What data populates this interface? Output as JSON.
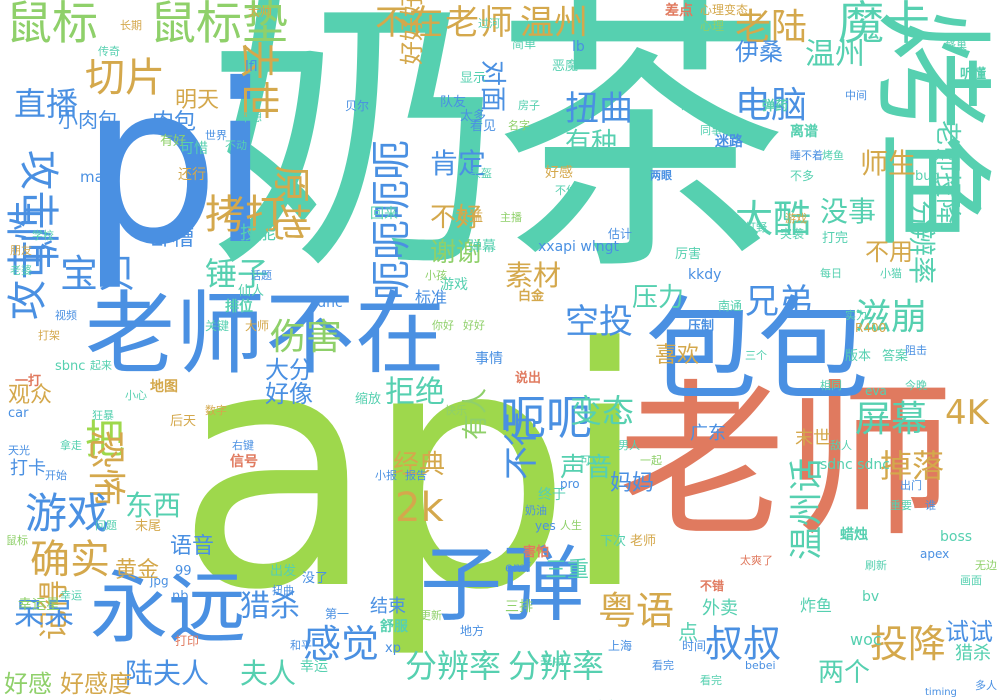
{
  "palette": [
    "#4a90e2",
    "#56d0b0",
    "#9ed84c",
    "#e07a5f",
    "#d4a84c",
    "#8fd06a"
  ],
  "words": [
    {
      "text": "api",
      "color": "#9ed84c"
    },
    {
      "text": "奶茶",
      "color": "#56d0b0"
    },
    {
      "text": "老师",
      "color": "#e07a5f"
    },
    {
      "text": "pi",
      "color": "#4a90e2"
    },
    {
      "text": "包包",
      "color": "#4a90e2"
    },
    {
      "text": "老师不在",
      "color": "#4a90e2"
    },
    {
      "text": "永远",
      "color": "#4a90e2"
    },
    {
      "text": "子弹",
      "color": "#4a90e2"
    },
    {
      "text": "烤鱼",
      "color": "#56d0b0"
    },
    {
      "text": "鼠标",
      "color": "#8fd06a"
    },
    {
      "text": "鼠标垫",
      "color": "#8fd06a"
    },
    {
      "text": "不在",
      "color": "#d4a84c"
    },
    {
      "text": "老师",
      "color": "#d4a84c"
    },
    {
      "text": "温州",
      "color": "#d4a84c"
    },
    {
      "text": "老陆",
      "color": "#d4a84c"
    },
    {
      "text": "魔卡",
      "color": "#56d0b0"
    },
    {
      "text": "直播",
      "color": "#4a90e2"
    },
    {
      "text": "切片",
      "color": "#d4a84c"
    },
    {
      "text": "去世",
      "color": "#d4a84c"
    },
    {
      "text": "扭曲",
      "color": "#4a90e2"
    },
    {
      "text": "电脑",
      "color": "#4a90e2"
    },
    {
      "text": "呃呃呃呃",
      "color": "#4a90e2"
    },
    {
      "text": "拷打",
      "color": "#d4a84c"
    },
    {
      "text": "原地",
      "color": "#d4a84c"
    },
    {
      "text": "太酷",
      "color": "#56d0b0"
    },
    {
      "text": "攻击性",
      "color": "#4a90e2"
    },
    {
      "text": "攻击性",
      "color": "#4a90e2"
    },
    {
      "text": "宝贝",
      "color": "#4a90e2"
    },
    {
      "text": "锤子",
      "color": "#56d0b0"
    },
    {
      "text": "兄弟",
      "color": "#4a90e2"
    },
    {
      "text": "空投",
      "color": "#4a90e2"
    },
    {
      "text": "伤害",
      "color": "#8fd06a"
    },
    {
      "text": "滋崩",
      "color": "#56d0b0"
    },
    {
      "text": "呃呃",
      "color": "#4a90e2"
    },
    {
      "text": "把",
      "color": "#9ed84c"
    },
    {
      "text": "恐怖",
      "color": "#d4a84c"
    },
    {
      "text": "游戏",
      "color": "#4a90e2"
    },
    {
      "text": "确实",
      "color": "#d4a84c"
    },
    {
      "text": "2k",
      "color": "#d4a84c"
    },
    {
      "text": "不行",
      "color": "#4a90e2"
    },
    {
      "text": "粤语",
      "color": "#d4a84c"
    },
    {
      "text": "叔叔",
      "color": "#4a90e2"
    },
    {
      "text": "投降",
      "color": "#d4a84c"
    },
    {
      "text": "感觉",
      "color": "#4a90e2"
    },
    {
      "text": "分辨率",
      "color": "#56d0b0"
    },
    {
      "text": "分辨率",
      "color": "#56d0b0"
    },
    {
      "text": "温州话",
      "color": "#56d0b0"
    },
    {
      "text": "屏幕",
      "color": "#56d0b0"
    },
    {
      "text": "掉落",
      "color": "#d4a84c"
    },
    {
      "text": "4K",
      "color": "#d4a84c"
    },
    {
      "text": "变态",
      "color": "#56d0b0"
    },
    {
      "text": "拒绝",
      "color": "#56d0b0"
    },
    {
      "text": "陆夫人",
      "color": "#4a90e2"
    },
    {
      "text": "夫人",
      "color": "#56d0b0"
    },
    {
      "text": "猎杀",
      "color": "#4a90e2"
    },
    {
      "text": "记得",
      "color": "#d4a84c"
    },
    {
      "text": "呆呆",
      "color": "#4a90e2"
    },
    {
      "text": "东西",
      "color": "#56d0b0"
    },
    {
      "text": "好感",
      "color": "#8fd06a"
    },
    {
      "text": "好感度",
      "color": "#d4a84c"
    },
    {
      "text": "黄金",
      "color": "#d4a84c"
    },
    {
      "text": "温州",
      "color": "#56d0b0"
    },
    {
      "text": "老师投降",
      "color": "#56d0b0"
    },
    {
      "text": "分辨率",
      "color": "#56d0b0"
    },
    {
      "text": "肉包",
      "color": "#4a90e2"
    },
    {
      "text": "肯定",
      "color": "#4a90e2"
    },
    {
      "text": "谢谢",
      "color": "#8fd06a"
    },
    {
      "text": "不好",
      "color": "#d4a84c"
    },
    {
      "text": "素材",
      "color": "#d4a84c"
    },
    {
      "text": "压力",
      "color": "#56d0b0"
    },
    {
      "text": "没事",
      "color": "#56d0b0"
    },
    {
      "text": "不用",
      "color": "#d4a84c"
    },
    {
      "text": "有种",
      "color": "#56d0b0"
    },
    {
      "text": "对面",
      "color": "#4a90e2"
    },
    {
      "text": "伊桑",
      "color": "#4a90e2"
    },
    {
      "text": "师生",
      "color": "#d4a84c"
    },
    {
      "text": "两个",
      "color": "#56d0b0"
    },
    {
      "text": "试试",
      "color": "#4a90e2"
    },
    {
      "text": "声音",
      "color": "#56d0b0"
    },
    {
      "text": "经典",
      "color": "#d4a84c"
    },
    {
      "text": "有人",
      "color": "#8fd06a"
    },
    {
      "text": "妈妈",
      "color": "#4a90e2"
    },
    {
      "text": "好好好好",
      "color": "#d4a84c"
    },
    {
      "text": "大分",
      "color": "#4a90e2"
    },
    {
      "text": "好像",
      "color": "#4a90e2"
    },
    {
      "text": "三重",
      "color": "#56d0b0"
    },
    {
      "text": "喜欢",
      "color": "#d4a84c"
    },
    {
      "text": "观众",
      "color": "#d4a84c"
    },
    {
      "text": "语音",
      "color": "#4a90e2"
    },
    {
      "text": "猎杀",
      "color": "#56d0b0"
    },
    {
      "text": "小肉包",
      "color": "#4a90e2"
    },
    {
      "text": "明天",
      "color": "#d4a84c"
    },
    {
      "text": "卧槽",
      "color": "#4a90e2"
    },
    {
      "text": "技能",
      "color": "#56d0b0"
    },
    {
      "text": "信号",
      "color": "#e07a5f"
    },
    {
      "text": "xxapi wlngt",
      "color": "#4a90e2"
    },
    {
      "text": "sdnc",
      "color": "#4a90e2"
    },
    {
      "text": "woc",
      "color": "#56d0b0"
    },
    {
      "text": "结束",
      "color": "#4a90e2"
    },
    {
      "text": "点",
      "color": "#56d0b0"
    },
    {
      "text": "广东",
      "color": "#4a90e2"
    },
    {
      "text": "末世",
      "color": "#d4a84c"
    },
    {
      "text": "外卖",
      "color": "#56d0b0"
    },
    {
      "text": "舒服",
      "color": "#56d0b0"
    },
    {
      "text": "炸鱼",
      "color": "#56d0b0"
    },
    {
      "text": "蜡烛",
      "color": "#56d0b0"
    },
    {
      "text": "差点",
      "color": "#e07a5f"
    },
    {
      "text": "离谱",
      "color": "#56d0b0"
    },
    {
      "text": "迷路",
      "color": "#4a90e2"
    },
    {
      "text": "弹药",
      "color": "#56d0b0"
    },
    {
      "text": "压制",
      "color": "#4a90e2"
    },
    {
      "text": "好感",
      "color": "#d4a84c"
    },
    {
      "text": "太猛",
      "color": "#d4a84c"
    },
    {
      "text": "排位",
      "color": "#56d0b0"
    },
    {
      "text": "游戏",
      "color": "#56d0b0"
    },
    {
      "text": "boss",
      "color": "#56d0b0"
    },
    {
      "text": "幸运星",
      "color": "#8fd06a"
    },
    {
      "text": "幸运",
      "color": "#56d0b0"
    },
    {
      "text": "说出",
      "color": "#e07a5f"
    },
    {
      "text": "看见",
      "color": "#4a90e2"
    },
    {
      "text": "有好",
      "color": "#8fd06a"
    },
    {
      "text": "缩放",
      "color": "#56d0b0"
    },
    {
      "text": "打卡",
      "color": "#4a90e2"
    },
    {
      "text": "一打",
      "color": "#e07a5f"
    },
    {
      "text": "出发",
      "color": "#56d0b0"
    },
    {
      "text": "标准",
      "color": "#4a90e2"
    },
    {
      "text": "白金",
      "color": "#d4a84c"
    },
    {
      "text": "打完",
      "color": "#56d0b0"
    },
    {
      "text": "厉害",
      "color": "#56d0b0"
    },
    {
      "text": "上海",
      "color": "#4a90e2"
    },
    {
      "text": "可惜",
      "color": "#56d0b0"
    },
    {
      "text": "还行",
      "color": "#d4a84c"
    },
    {
      "text": "事情",
      "color": "#4a90e2"
    },
    {
      "text": "三排",
      "color": "#8fd06a"
    },
    {
      "text": "终于",
      "color": "#56d0b0"
    },
    {
      "text": "来点",
      "color": "#56d0b0"
    },
    {
      "text": "害怕",
      "color": "#e07a5f"
    },
    {
      "text": "弹幕",
      "color": "#56d0b0"
    },
    {
      "text": "回来",
      "color": "#56d0b0"
    },
    {
      "text": "听懂",
      "color": "#56d0b0"
    },
    {
      "text": "恶魔",
      "color": "#56d0b0"
    },
    {
      "text": "太多",
      "color": "#4a90e2"
    },
    {
      "text": "心理",
      "color": "#8fd06a"
    },
    {
      "text": "心理变态",
      "color": "#d4a84c"
    },
    {
      "text": "版本",
      "color": "#56d0b0"
    },
    {
      "text": "答案",
      "color": "#56d0b0"
    },
    {
      "text": "sdnc sdnc",
      "color": "#56d0b0"
    },
    {
      "text": "sbnc",
      "color": "#56d0b0"
    },
    {
      "text": "man",
      "color": "#4a90e2"
    },
    {
      "text": "bv",
      "color": "#56d0b0"
    },
    {
      "text": "apex",
      "color": "#4a90e2"
    },
    {
      "text": "kkdy",
      "color": "#4a90e2"
    },
    {
      "text": "lb",
      "color": "#4a90e2"
    },
    {
      "text": "lfl",
      "color": "#4a90e2"
    },
    {
      "text": "bug",
      "color": "#56d0b0"
    },
    {
      "text": "R400",
      "color": "#d4a84c"
    },
    {
      "text": "eva",
      "color": "#56d0b0"
    },
    {
      "text": "xp",
      "color": "#4a90e2"
    },
    {
      "text": "nb",
      "color": "#4a90e2"
    },
    {
      "text": "99",
      "color": "#4a90e2"
    },
    {
      "text": "pro",
      "color": "#4a90e2"
    },
    {
      "text": "jpg",
      "color": "#4a90e2"
    },
    {
      "text": "emf",
      "color": "#4a90e2"
    },
    {
      "text": "car",
      "color": "#4a90e2"
    },
    {
      "text": "timing",
      "color": "#4a90e2"
    },
    {
      "text": "bebei",
      "color": "#4a90e2"
    },
    {
      "text": "yes",
      "color": "#4a90e2"
    },
    {
      "text": "小猫",
      "color": "#56d0b0"
    },
    {
      "text": "仙人",
      "color": "#56d0b0"
    },
    {
      "text": "关键",
      "color": "#56d0b0"
    },
    {
      "text": "大师",
      "color": "#d4a84c"
    },
    {
      "text": "地方",
      "color": "#4a90e2"
    },
    {
      "text": "第一",
      "color": "#4a90e2"
    },
    {
      "text": "时间",
      "color": "#4a90e2"
    },
    {
      "text": "敌人",
      "color": "#56d0b0"
    },
    {
      "text": "没了",
      "color": "#4a90e2"
    },
    {
      "text": "奶油",
      "color": "#4a90e2"
    },
    {
      "text": "末尾",
      "color": "#d4a84c"
    },
    {
      "text": "人生",
      "color": "#8fd06a"
    },
    {
      "text": "世界",
      "color": "#4a90e2"
    },
    {
      "text": "队友",
      "color": "#4a90e2"
    },
    {
      "text": "显示",
      "color": "#56d0b0"
    },
    {
      "text": "名字",
      "color": "#8fd06a"
    },
    {
      "text": "简单",
      "color": "#56d0b0"
    },
    {
      "text": "不想",
      "color": "#56d0b0"
    },
    {
      "text": "不动",
      "color": "#56d0b0"
    },
    {
      "text": "估计",
      "color": "#4a90e2"
    },
    {
      "text": "突袭",
      "color": "#56d0b0"
    },
    {
      "text": "南通",
      "color": "#56d0b0"
    },
    {
      "text": "每日",
      "color": "#56d0b0"
    },
    {
      "text": "阻击",
      "color": "#4a90e2"
    },
    {
      "text": "打印",
      "color": "#e07a5f"
    },
    {
      "text": "更新",
      "color": "#8fd06a"
    },
    {
      "text": "小报",
      "color": "#4a90e2"
    },
    {
      "text": "报告",
      "color": "#4a90e2"
    },
    {
      "text": "蜂巢",
      "color": "#56d0b0"
    },
    {
      "text": "不错",
      "color": "#e07a5f"
    },
    {
      "text": "下次",
      "color": "#56d0b0"
    },
    {
      "text": "老师",
      "color": "#d4a84c"
    },
    {
      "text": "太爽了",
      "color": "#e07a5f"
    },
    {
      "text": "扭曲",
      "color": "#4a90e2"
    },
    {
      "text": "话题",
      "color": "#4a90e2"
    },
    {
      "text": "小孩",
      "color": "#8fd06a"
    },
    {
      "text": "打野",
      "color": "#56d0b0"
    },
    {
      "text": "开心",
      "color": "#56d0b0"
    },
    {
      "text": "游戏",
      "color": "#d4a84c"
    },
    {
      "text": "今晚",
      "color": "#56d0b0"
    },
    {
      "text": "睡不着",
      "color": "#4a90e2"
    },
    {
      "text": "不多",
      "color": "#56d0b0"
    },
    {
      "text": "不住",
      "color": "#56d0b0"
    },
    {
      "text": "同事",
      "color": "#56d0b0"
    },
    {
      "text": "日常",
      "color": "#56d0b0"
    },
    {
      "text": "两眼",
      "color": "#4a90e2"
    },
    {
      "text": "烤鱼",
      "color": "#56d0b0"
    },
    {
      "text": "幸运",
      "color": "#56d0b0"
    },
    {
      "text": "实力",
      "color": "#56d0b0"
    },
    {
      "text": "三个",
      "color": "#56d0b0"
    },
    {
      "text": "看完",
      "color": "#4a90e2"
    },
    {
      "text": "男人",
      "color": "#56d0b0"
    },
    {
      "text": "一起",
      "color": "#8fd06a"
    },
    {
      "text": "数字",
      "color": "#d4a84c"
    },
    {
      "text": "后天",
      "color": "#d4a84c"
    },
    {
      "text": "快乐",
      "color": "#8fd06a"
    },
    {
      "text": "你好",
      "color": "#8fd06a"
    },
    {
      "text": "好好",
      "color": "#8fd06a"
    },
    {
      "text": "谁",
      "color": "#4a90e2"
    },
    {
      "text": "画面",
      "color": "#56d0b0"
    },
    {
      "text": "头盔",
      "color": "#56d0b0"
    },
    {
      "text": "可以",
      "color": "#56d0b0"
    },
    {
      "text": "主播",
      "color": "#8fd06a"
    },
    {
      "text": "视频",
      "color": "#4a90e2"
    },
    {
      "text": "起来",
      "color": "#56d0b0"
    },
    {
      "text": "打架",
      "color": "#d4a84c"
    },
    {
      "text": "学校",
      "color": "#56d0b0"
    },
    {
      "text": "老婆",
      "color": "#56d0b0"
    },
    {
      "text": "朋友",
      "color": "#d4a84c"
    },
    {
      "text": "和平",
      "color": "#4a90e2"
    },
    {
      "text": "贝尔",
      "color": "#4a90e2"
    },
    {
      "text": "太帅",
      "color": "#d4a84c"
    },
    {
      "text": "过河",
      "color": "#56d0b0"
    },
    {
      "text": "长期",
      "color": "#d4a84c"
    },
    {
      "text": "传奇",
      "color": "#56d0b0"
    },
    {
      "text": "多人",
      "color": "#4a90e2"
    },
    {
      "text": "相同",
      "color": "#56d0b0"
    },
    {
      "text": "重要",
      "color": "#56d0b0"
    },
    {
      "text": "无边",
      "color": "#8fd06a"
    },
    {
      "text": "出门",
      "color": "#4a90e2"
    },
    {
      "text": "刷新",
      "color": "#56d0b0"
    },
    {
      "text": "右键",
      "color": "#4a90e2"
    },
    {
      "text": "拿走",
      "color": "#56d0b0"
    },
    {
      "text": "开始",
      "color": "#4a90e2"
    },
    {
      "text": "狂暴",
      "color": "#56d0b0"
    },
    {
      "text": "上次",
      "color": "#56d0b0"
    },
    {
      "text": "房子",
      "color": "#56d0b0"
    },
    {
      "text": "鼠标",
      "color": "#8fd06a"
    },
    {
      "text": "小心",
      "color": "#56d0b0"
    },
    {
      "text": "问题",
      "color": "#56d0b0"
    },
    {
      "text": "天光",
      "color": "#4a90e2"
    },
    {
      "text": "地图",
      "color": "#d4a84c"
    },
    {
      "text": "看完",
      "color": "#56d0b0"
    },
    {
      "text": "中间",
      "color": "#4a90e2"
    }
  ]
}
